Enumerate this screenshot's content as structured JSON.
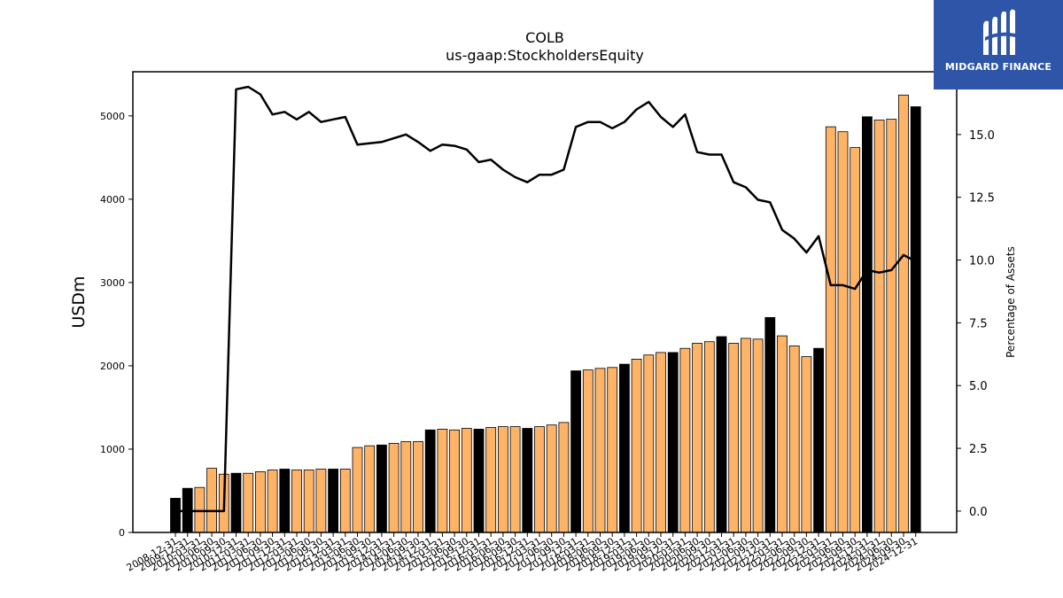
{
  "brand": {
    "name": "MIDGARD FINANCE",
    "color": "#2e55a8"
  },
  "chart_data": {
    "type": "bar",
    "title": "COLB",
    "subtitle": "us-gaap:StockholdersEquity",
    "ylabel": "USDm",
    "y2label": "Percentage of Assets",
    "ylim": [
      0,
      5530
    ],
    "y2lim": [
      -0.85,
      17.5
    ],
    "yticks": [
      0,
      1000,
      2000,
      3000,
      4000,
      5000
    ],
    "y2ticks": [
      "0.0",
      "2.5",
      "5.0",
      "7.5",
      "10.0",
      "12.5",
      "15.0"
    ],
    "colors": {
      "annual": "#000000",
      "quarterly": "#ffb366",
      "line": "#000000"
    },
    "categories": [
      "2008-12-31",
      "2009-12-31",
      "2010-03-31",
      "2010-06-30",
      "2010-09-30",
      "2010-12-31",
      "2011-03-31",
      "2011-06-30",
      "2011-09-30",
      "2011-12-31",
      "2012-03-31",
      "2012-06-30",
      "2012-09-30",
      "2012-12-31",
      "2013-03-31",
      "2013-06-30",
      "2013-09-30",
      "2013-12-31",
      "2014-03-31",
      "2014-06-30",
      "2014-09-30",
      "2014-12-31",
      "2015-03-31",
      "2015-06-30",
      "2015-09-30",
      "2015-12-31",
      "2016-03-31",
      "2016-06-30",
      "2016-09-30",
      "2016-12-31",
      "2017-03-31",
      "2017-06-30",
      "2017-09-30",
      "2017-12-31",
      "2018-03-31",
      "2018-06-30",
      "2018-09-30",
      "2018-12-31",
      "2019-03-31",
      "2019-06-30",
      "2019-09-30",
      "2019-12-31",
      "2020-03-31",
      "2020-06-30",
      "2020-09-30",
      "2020-12-31",
      "2021-03-31",
      "2021-06-30",
      "2021-09-30",
      "2021-12-31",
      "2022-03-31",
      "2022-06-30",
      "2022-09-30",
      "2022-12-31",
      "2023-03-31",
      "2023-06-30",
      "2023-09-30",
      "2023-12-31",
      "2024-03-31",
      "2024-06-30",
      "2024-09-30",
      "2024-12-31"
    ],
    "series": [
      {
        "name": "StockholdersEquity",
        "kind": "bar",
        "values": [
          410,
          530,
          540,
          770,
          700,
          710,
          710,
          730,
          750,
          760,
          750,
          750,
          760,
          760,
          760,
          1020,
          1040,
          1050,
          1070,
          1090,
          1090,
          1230,
          1240,
          1230,
          1250,
          1240,
          1260,
          1270,
          1270,
          1250,
          1270,
          1290,
          1320,
          1940,
          1950,
          1970,
          1980,
          2020,
          2080,
          2130,
          2160,
          2160,
          2210,
          2270,
          2290,
          2350,
          2270,
          2330,
          2320,
          2580,
          2360,
          2240,
          2110,
          2210,
          4870,
          4810,
          4620,
          4990,
          4950,
          4960,
          5250,
          5110
        ],
        "annual": [
          true,
          true,
          false,
          false,
          false,
          true,
          false,
          false,
          false,
          true,
          false,
          false,
          false,
          true,
          false,
          false,
          false,
          true,
          false,
          false,
          false,
          true,
          false,
          false,
          false,
          true,
          false,
          false,
          false,
          true,
          false,
          false,
          false,
          true,
          false,
          false,
          false,
          true,
          false,
          false,
          false,
          true,
          false,
          false,
          false,
          true,
          false,
          false,
          false,
          true,
          false,
          false,
          false,
          true,
          false,
          false,
          false,
          true,
          false,
          false,
          false,
          true
        ]
      },
      {
        "name": "Percentage of Assets",
        "kind": "line",
        "axis": "right",
        "values": [
          0.0,
          0.0,
          0.0,
          0.0,
          0.0,
          16.8,
          16.9,
          16.6,
          15.8,
          15.9,
          15.6,
          15.9,
          15.5,
          15.6,
          15.7,
          14.6,
          14.65,
          14.7,
          14.85,
          15.0,
          14.7,
          14.35,
          14.6,
          14.55,
          14.4,
          13.9,
          14.0,
          13.6,
          13.3,
          13.1,
          13.4,
          13.4,
          13.6,
          15.3,
          15.5,
          15.5,
          15.25,
          15.5,
          16.0,
          16.3,
          15.7,
          15.3,
          15.8,
          14.3,
          14.2,
          14.2,
          13.1,
          12.9,
          12.4,
          12.3,
          11.2,
          10.85,
          10.3,
          10.95,
          9.0,
          9.0,
          8.85,
          9.6,
          9.5,
          9.6,
          10.2,
          9.95
        ]
      }
    ],
    "grid": false,
    "legend": "none"
  }
}
